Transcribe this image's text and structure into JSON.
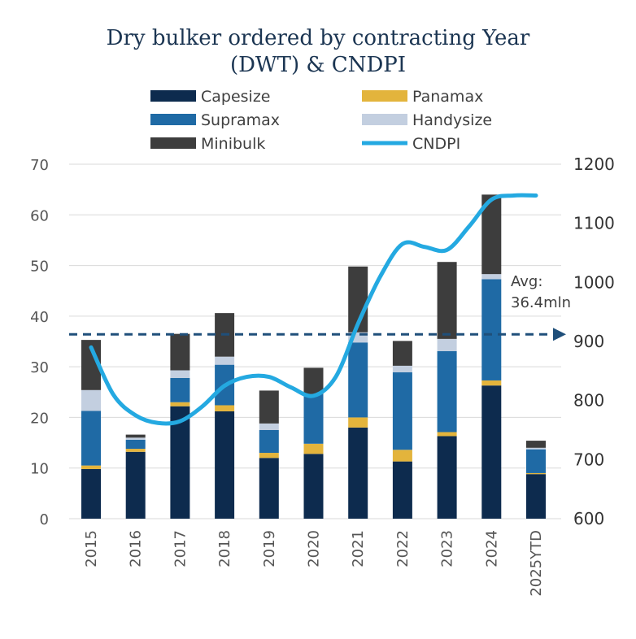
{
  "chart_data": {
    "type": "bar",
    "stacked": true,
    "title_lines": [
      "Dry bulker ordered by contracting Year",
      "(DWT) & CNDPI"
    ],
    "categories": [
      "2015",
      "2016",
      "2017",
      "2018",
      "2019",
      "2020",
      "2021",
      "2022",
      "2023",
      "2024",
      "2025YTD"
    ],
    "ylim": [
      0,
      70
    ],
    "yticks": [
      "0",
      "10",
      "20",
      "30",
      "40",
      "50",
      "60",
      "70"
    ],
    "y2lim": [
      600,
      1200
    ],
    "y2ticks": [
      "600",
      "700",
      "800",
      "900",
      "1000",
      "1100",
      "1200"
    ],
    "grid": true,
    "legend_position": "top",
    "series": [
      {
        "name": "Capesize",
        "color": "#0d2b4e",
        "values": [
          9.8,
          13.2,
          22.2,
          21.2,
          12.0,
          12.8,
          18.0,
          11.3,
          16.3,
          26.3,
          8.8
        ]
      },
      {
        "name": "Panamax",
        "color": "#e3b43c",
        "values": [
          0.7,
          0.6,
          0.8,
          1.2,
          1.0,
          2.0,
          2.0,
          2.3,
          0.8,
          1.0,
          0.2
        ]
      },
      {
        "name": "Supramax",
        "color": "#1f6aa5",
        "values": [
          10.8,
          1.8,
          4.8,
          8.0,
          4.5,
          9.8,
          14.8,
          15.3,
          16.0,
          20.0,
          4.7
        ]
      },
      {
        "name": "Handysize",
        "color": "#c3cfe0",
        "values": [
          4.1,
          0.4,
          1.5,
          1.6,
          1.3,
          0.0,
          2.0,
          1.3,
          2.4,
          1.0,
          0.3
        ]
      },
      {
        "name": "Minibulk",
        "color": "#3d3d3d",
        "values": [
          9.9,
          0.6,
          7.2,
          8.6,
          6.5,
          5.2,
          13.0,
          4.9,
          15.2,
          15.7,
          1.4
        ]
      }
    ],
    "line_series": {
      "name": "CNDPI",
      "color": "#24a9e1",
      "axis": "right",
      "points": [
        {
          "x": 2015.0,
          "y": 890
        },
        {
          "x": 2015.5,
          "y": 810
        },
        {
          "x": 2016.0,
          "y": 775
        },
        {
          "x": 2016.5,
          "y": 762
        },
        {
          "x": 2017.0,
          "y": 765
        },
        {
          "x": 2017.5,
          "y": 790
        },
        {
          "x": 2018.0,
          "y": 825
        },
        {
          "x": 2018.5,
          "y": 840
        },
        {
          "x": 2019.0,
          "y": 840
        },
        {
          "x": 2019.5,
          "y": 822
        },
        {
          "x": 2020.0,
          "y": 808
        },
        {
          "x": 2020.5,
          "y": 840
        },
        {
          "x": 2021.0,
          "y": 930
        },
        {
          "x": 2021.5,
          "y": 1010
        },
        {
          "x": 2022.0,
          "y": 1065
        },
        {
          "x": 2022.5,
          "y": 1060
        },
        {
          "x": 2023.0,
          "y": 1055
        },
        {
          "x": 2023.5,
          "y": 1095
        },
        {
          "x": 2024.0,
          "y": 1140
        },
        {
          "x": 2024.5,
          "y": 1147
        },
        {
          "x": 2025.0,
          "y": 1147
        }
      ]
    },
    "average_line": {
      "value": 36.4,
      "label_lines": [
        "Avg:",
        "36.4mln"
      ],
      "color": "#1f4f7a",
      "style": "dashed"
    },
    "legend": [
      "Capesize",
      "Panamax",
      "Supramax",
      "Handysize",
      "Minibulk",
      "CNDPI"
    ]
  }
}
